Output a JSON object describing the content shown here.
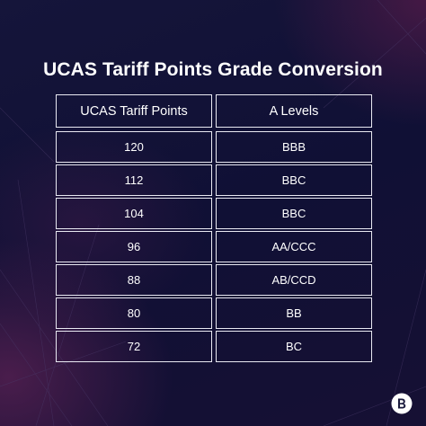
{
  "title": "UCAS Tariff Points Grade Conversion",
  "table": {
    "headers": [
      "UCAS Tariff Points",
      "A Levels"
    ],
    "rows": [
      {
        "points": "120",
        "grades": "BBB"
      },
      {
        "points": "112",
        "grades": "BBC"
      },
      {
        "points": "104",
        "grades": "BBC"
      },
      {
        "points": "96",
        "grades": "AA/CCC"
      },
      {
        "points": "88",
        "grades": "AB/CCD"
      },
      {
        "points": "80",
        "grades": "BB"
      },
      {
        "points": "72",
        "grades": "BC"
      }
    ]
  },
  "colors": {
    "background": "#0f0f33",
    "accent": "#7a2a60",
    "border": "#e9e9f2",
    "text": "#ffffff"
  },
  "logo": {
    "icon": "brand-logo-icon"
  }
}
